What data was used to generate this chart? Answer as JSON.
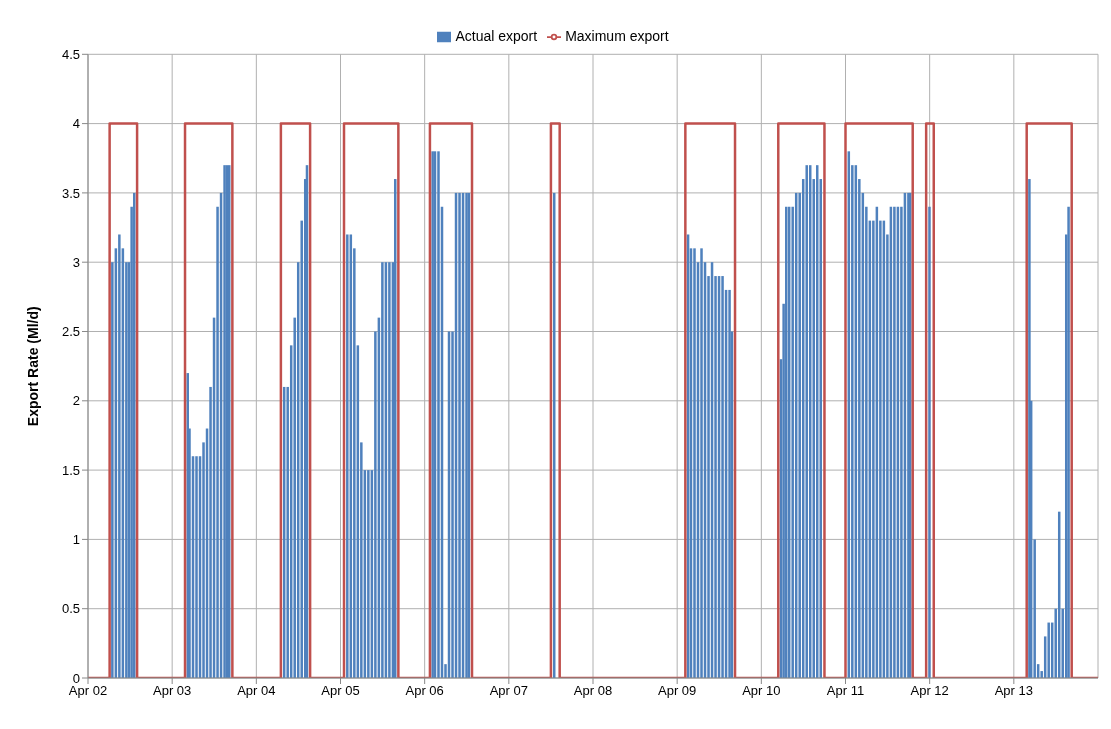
{
  "chart_data": {
    "type": "bar",
    "ylabel": "Export Rate (Ml/d)",
    "xlim": [
      "--04-02",
      "--04-14"
    ],
    "xticks": [
      {
        "value": "--04-02",
        "label": "Apr 02"
      },
      {
        "value": "--04-03",
        "label": "Apr 03"
      },
      {
        "value": "--04-04",
        "label": "Apr 04"
      },
      {
        "value": "--04-05",
        "label": "Apr 05"
      },
      {
        "value": "--04-06",
        "label": "Apr 06"
      },
      {
        "value": "--04-07",
        "label": "Apr 07"
      },
      {
        "value": "--04-08",
        "label": "Apr 08"
      },
      {
        "value": "--04-09",
        "label": "Apr 09"
      },
      {
        "value": "--04-10",
        "label": "Apr 10"
      },
      {
        "value": "--04-11",
        "label": "Apr 11"
      },
      {
        "value": "--04-12",
        "label": "Apr 12"
      },
      {
        "value": "--04-13",
        "label": "Apr 13"
      }
    ],
    "ylim": [
      0,
      4.5
    ],
    "yticks": [
      0,
      0.5,
      1,
      1.5,
      2,
      2.5,
      3,
      3.5,
      4,
      4.5
    ],
    "grid": true,
    "legend": "top",
    "series": [
      {
        "name": "Actual export",
        "color": "#4f81bd",
        "x": [
          "--04-02T07:00",
          "--04-02T08:00",
          "--04-02T09:00",
          "--04-02T10:00",
          "--04-02T11:00",
          "--04-02T11:45",
          "--04-02T12:30",
          "--04-02T13:15",
          "--04-03T04:30",
          "--04-03T05:00",
          "--04-03T06:00",
          "--04-03T07:00",
          "--04-03T08:00",
          "--04-03T09:00",
          "--04-03T10:00",
          "--04-03T11:00",
          "--04-03T12:00",
          "--04-03T13:00",
          "--04-03T14:00",
          "--04-03T15:00",
          "--04-03T15:40",
          "--04-03T16:20",
          "--04-04T08:00",
          "--04-04T09:00",
          "--04-04T10:00",
          "--04-04T11:00",
          "--04-04T12:00",
          "--04-04T13:00",
          "--04-04T14:00",
          "--04-04T14:30",
          "--04-05T02:00",
          "--04-05T03:00",
          "--04-05T04:00",
          "--04-05T05:00",
          "--04-05T06:00",
          "--04-05T07:00",
          "--04-05T08:00",
          "--04-05T09:00",
          "--04-05T10:00",
          "--04-05T11:00",
          "--04-05T12:00",
          "--04-05T13:00",
          "--04-05T14:00",
          "--04-05T15:00",
          "--04-05T15:40",
          "--04-06T02:20",
          "--04-06T03:00",
          "--04-06T04:00",
          "--04-06T05:00",
          "--04-06T06:00",
          "--04-06T07:00",
          "--04-06T08:00",
          "--04-06T09:00",
          "--04-06T10:00",
          "--04-06T11:00",
          "--04-06T12:00",
          "--04-06T12:40",
          "--04-07T13:00",
          "--04-09T03:10",
          "--04-09T04:00",
          "--04-09T05:00",
          "--04-09T06:00",
          "--04-09T07:00",
          "--04-09T08:00",
          "--04-09T09:00",
          "--04-09T10:00",
          "--04-09T11:00",
          "--04-09T12:00",
          "--04-09T13:00",
          "--04-09T14:00",
          "--04-09T15:00",
          "--04-09T15:40",
          "--04-10T05:40",
          "--04-10T06:25",
          "--04-10T07:10",
          "--04-10T08:00",
          "--04-10T09:00",
          "--04-10T10:00",
          "--04-10T11:00",
          "--04-10T12:00",
          "--04-10T13:00",
          "--04-10T14:00",
          "--04-10T15:00",
          "--04-10T16:00",
          "--04-10T17:00",
          "--04-11T01:00",
          "--04-11T02:00",
          "--04-11T03:00",
          "--04-11T04:00",
          "--04-11T05:00",
          "--04-11T06:00",
          "--04-11T07:00",
          "--04-11T08:00",
          "--04-11T09:00",
          "--04-11T10:00",
          "--04-11T11:00",
          "--04-11T12:00",
          "--04-11T13:00",
          "--04-11T14:00",
          "--04-11T15:00",
          "--04-11T16:00",
          "--04-11T17:00",
          "--04-11T18:00",
          "--04-11T18:30",
          "--04-12T00:00",
          "--04-13T04:30",
          "--04-13T05:00",
          "--04-13T06:00",
          "--04-13T07:00",
          "--04-13T08:00",
          "--04-13T09:00",
          "--04-13T10:00",
          "--04-13T11:00",
          "--04-13T12:00",
          "--04-13T13:00",
          "--04-13T14:00",
          "--04-13T15:00",
          "--04-13T15:40"
        ],
        "values": [
          3.0,
          3.1,
          3.2,
          3.1,
          3.0,
          3.0,
          3.4,
          3.5,
          2.2,
          1.8,
          1.6,
          1.6,
          1.6,
          1.7,
          1.8,
          2.1,
          2.6,
          3.4,
          3.5,
          3.7,
          3.7,
          3.7,
          2.1,
          2.1,
          2.4,
          2.6,
          3.0,
          3.3,
          3.6,
          3.7,
          3.2,
          3.2,
          3.1,
          2.4,
          1.7,
          1.5,
          1.5,
          1.5,
          2.5,
          2.6,
          3.0,
          3.0,
          3.0,
          3.0,
          3.6,
          3.8,
          3.8,
          3.8,
          3.4,
          0.1,
          2.5,
          2.5,
          3.5,
          3.5,
          3.5,
          3.5,
          3.5,
          3.5,
          3.2,
          3.1,
          3.1,
          3.0,
          3.1,
          3.0,
          2.9,
          3.0,
          2.9,
          2.9,
          2.9,
          2.8,
          2.8,
          2.5,
          2.3,
          2.7,
          3.4,
          3.4,
          3.4,
          3.5,
          3.5,
          3.6,
          3.7,
          3.7,
          3.6,
          3.7,
          3.6,
          3.8,
          3.7,
          3.7,
          3.6,
          3.5,
          3.4,
          3.3,
          3.3,
          3.4,
          3.3,
          3.3,
          3.2,
          3.4,
          3.4,
          3.4,
          3.4,
          3.5,
          3.5,
          3.5,
          3.4,
          3.6,
          2.0,
          1.0,
          0.1,
          0.05,
          0.3,
          0.4,
          0.4,
          0.5,
          1.2,
          0.5,
          3.2,
          3.4
        ]
      },
      {
        "name": "Maximum export",
        "type": "step",
        "color": "#c0504d",
        "marker": "none",
        "line_style": "solid",
        "x": [
          "--04-02T00:00",
          "--04-02T06:10",
          "--04-02T14:00",
          "--04-03T03:40",
          "--04-03T17:10",
          "--04-04T07:00",
          "--04-04T15:20",
          "--04-05T01:00",
          "--04-05T16:30",
          "--04-06T01:30",
          "--04-06T13:30",
          "--04-07T12:00",
          "--04-07T14:30",
          "--04-09T02:20",
          "--04-09T16:30",
          "--04-10T04:50",
          "--04-10T18:00",
          "--04-11T00:00",
          "--04-11T19:10",
          "--04-11T23:00",
          "--04-12T01:10",
          "--04-13T03:40",
          "--04-13T16:30",
          "--04-14T00:00"
        ],
        "values": [
          0,
          4,
          0,
          4,
          0,
          4,
          0,
          4,
          0,
          4,
          0,
          4,
          0,
          4,
          0,
          4,
          0,
          4,
          0,
          4,
          0,
          4,
          0,
          0
        ]
      }
    ]
  }
}
